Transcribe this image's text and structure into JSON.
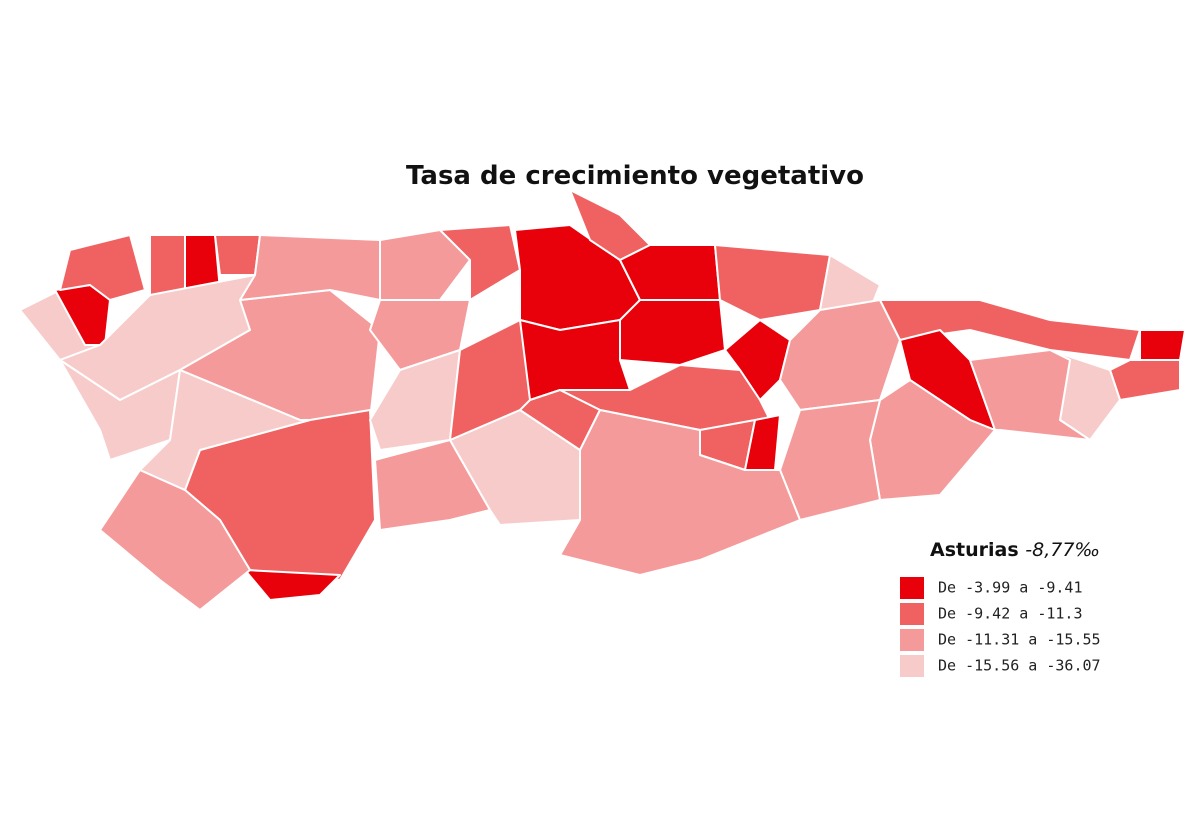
{
  "title": "Tasa de crecimiento vegetativo",
  "legend": {
    "title": "Asturias",
    "value": "-8,77‰",
    "items": [
      {
        "label": "De -3.99 a -9.41",
        "color": "#e8000a"
      },
      {
        "label": "De -9.42 a -11.3",
        "color": "#f06262"
      },
      {
        "label": "De -11.31 a -15.55",
        "color": "#f59a9a"
      },
      {
        "label": "De -15.56 a -36.07",
        "color": "#f8cbcb"
      }
    ]
  }
}
